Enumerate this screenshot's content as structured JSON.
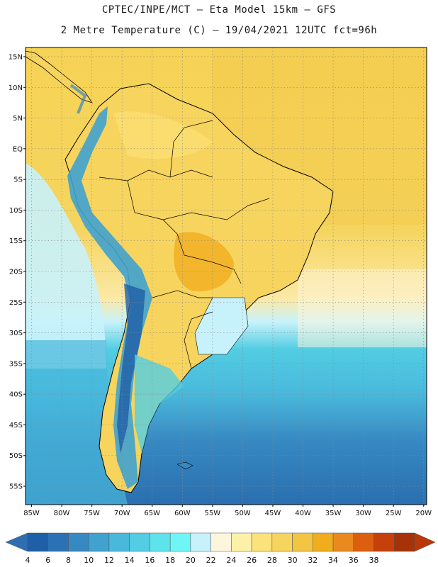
{
  "header": {
    "line1": "CPTEC/INPE/MCT –  Eta Model 15km – GFS",
    "line2": "2 Metre Temperature (C) – 19/04/2021 12UTC fct=96h"
  },
  "map": {
    "lat_labels": [
      "15N",
      "10N",
      "5N",
      "EQ",
      "5S",
      "10S",
      "15S",
      "20S",
      "25S",
      "30S",
      "35S",
      "40S",
      "45S",
      "50S",
      "55S"
    ],
    "lat_values": [
      15,
      10,
      5,
      0,
      -5,
      -10,
      -15,
      -20,
      -25,
      -30,
      -35,
      -40,
      -45,
      -50,
      -55
    ],
    "lon_labels": [
      "85W",
      "80W",
      "75W",
      "70W",
      "65W",
      "60W",
      "55W",
      "50W",
      "45W",
      "40W",
      "35W",
      "30W",
      "25W",
      "20W"
    ],
    "lon_values": [
      -85,
      -80,
      -75,
      -70,
      -65,
      -60,
      -55,
      -50,
      -45,
      -40,
      -35,
      -30,
      -25,
      -20
    ],
    "extent": {
      "lon_min": -86,
      "lon_max": -19.5,
      "lat_min": -58,
      "lat_max": 16.5
    }
  },
  "colorbar": {
    "labels": [
      "4",
      "6",
      "8",
      "10",
      "12",
      "14",
      "16",
      "18",
      "20",
      "22",
      "24",
      "26",
      "28",
      "30",
      "32",
      "34",
      "36",
      "38"
    ],
    "colors": [
      "#1f5fa8",
      "#2a72b5",
      "#3789c2",
      "#3fa2cf",
      "#49b8db",
      "#52cde3",
      "#5de3ec",
      "#6ef6f6",
      "#c8f2fb",
      "#fdf6dc",
      "#fdf0a8",
      "#fbe27a",
      "#f7d45e",
      "#f2c543",
      "#f1ad1e",
      "#ea8a1e",
      "#dc5f10",
      "#c5400b",
      "#a83208"
    ],
    "low_color": "#2f6fb0",
    "high_color": "#b8380a"
  }
}
